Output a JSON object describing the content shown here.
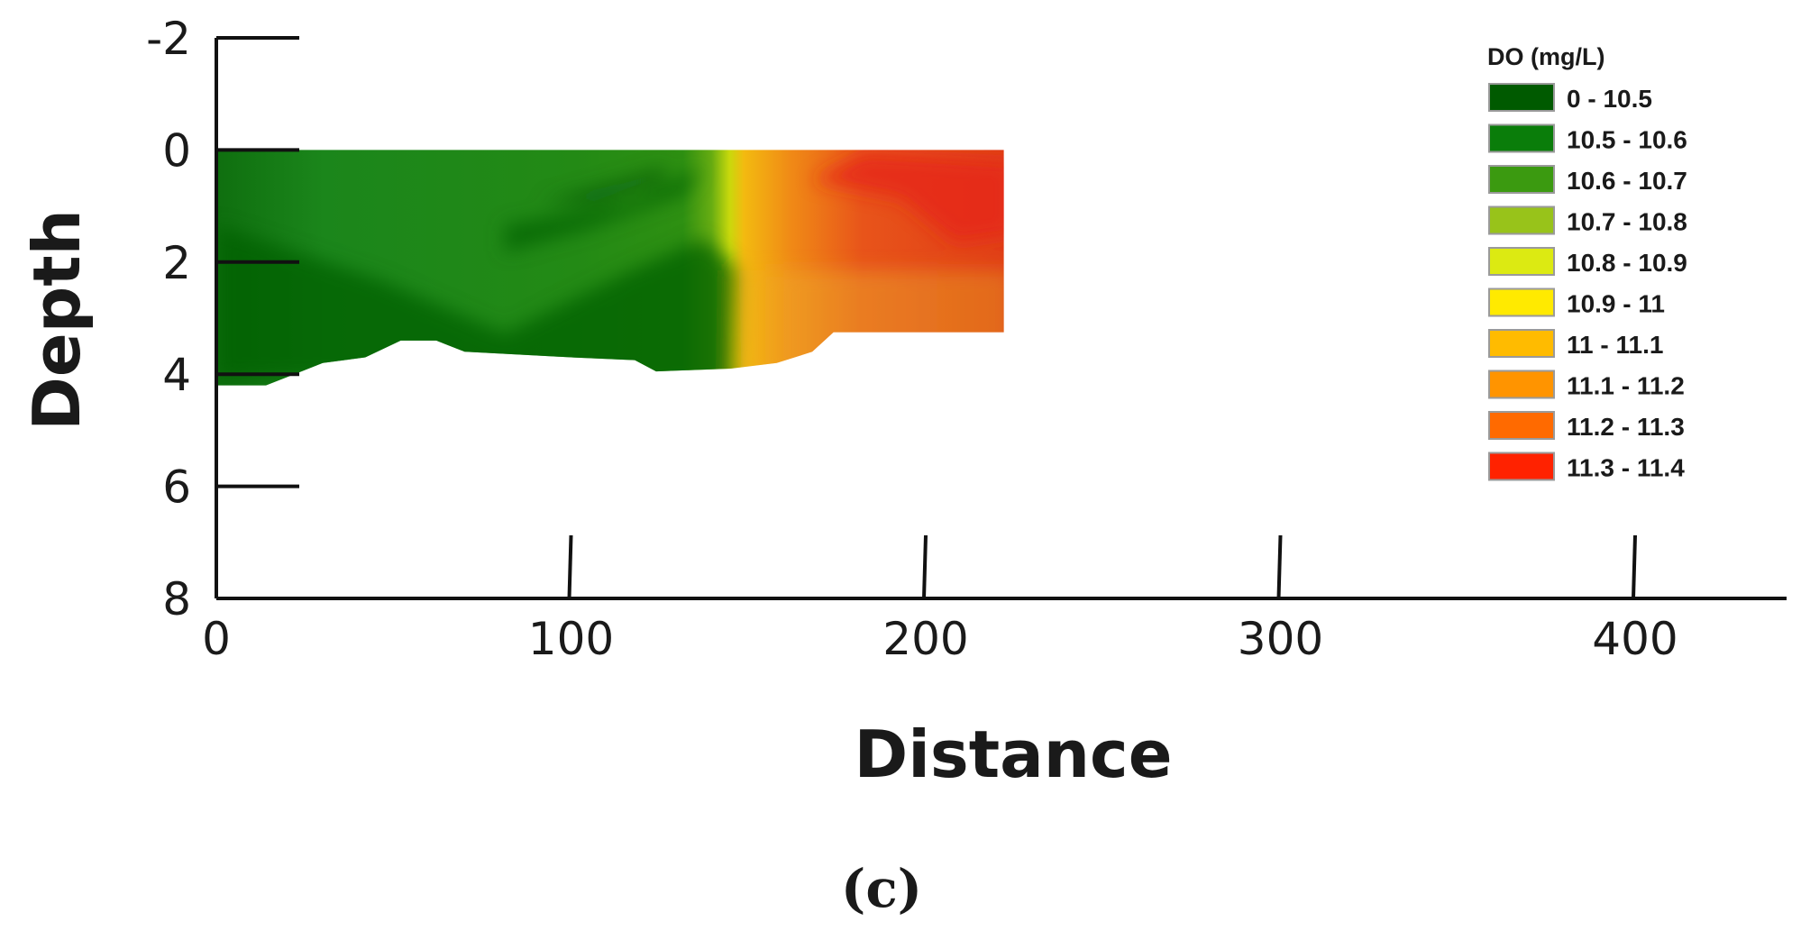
{
  "chart_data": {
    "type": "heatmap",
    "xlabel": "Distance",
    "ylabel": "Depth",
    "panel_label": "(c)",
    "x_ticks": [
      0,
      100,
      200,
      300,
      400
    ],
    "y_ticks": [
      -2,
      0,
      2,
      4,
      6,
      8
    ],
    "xlim": [
      0,
      440
    ],
    "ylim": [
      -2,
      8
    ],
    "legend": {
      "title": "DO (mg/L)",
      "placement": "top-right",
      "entries": [
        {
          "label": "0 - 10.5",
          "color": "#005a00"
        },
        {
          "label": "10.5 - 10.6",
          "color": "#0a7d0a"
        },
        {
          "label": "10.6 - 10.7",
          "color": "#3b9a10"
        },
        {
          "label": "10.7 - 10.8",
          "color": "#98c31a"
        },
        {
          "label": "10.8 - 10.9",
          "color": "#dcea12"
        },
        {
          "label": "10.9 - 11",
          "color": "#ffea00"
        },
        {
          "label": "11 - 11.1",
          "color": "#ffbb00"
        },
        {
          "label": "11.1 - 11.2",
          "color": "#ff9400"
        },
        {
          "label": "11.2 - 11.3",
          "color": "#ff6a00"
        },
        {
          "label": "11.3 - 11.4",
          "color": "#ff2200"
        }
      ]
    },
    "field": {
      "x_extent": [
        0,
        222
      ],
      "surface_depth": 0,
      "bottom_profile": [
        {
          "distance": 0,
          "depth": 4.2
        },
        {
          "distance": 14,
          "depth": 4.2
        },
        {
          "distance": 22,
          "depth": 4.0
        },
        {
          "distance": 30,
          "depth": 3.8
        },
        {
          "distance": 42,
          "depth": 3.7
        },
        {
          "distance": 52,
          "depth": 3.4
        },
        {
          "distance": 62,
          "depth": 3.4
        },
        {
          "distance": 70,
          "depth": 3.6
        },
        {
          "distance": 100,
          "depth": 3.7
        },
        {
          "distance": 118,
          "depth": 3.75
        },
        {
          "distance": 124,
          "depth": 3.95
        },
        {
          "distance": 145,
          "depth": 3.9
        },
        {
          "distance": 158,
          "depth": 3.8
        },
        {
          "distance": 168,
          "depth": 3.6
        },
        {
          "distance": 174,
          "depth": 3.25
        },
        {
          "distance": 222,
          "depth": 3.25
        }
      ],
      "horizontal_gradient": [
        {
          "distance": 0,
          "color": "#0f6f0f"
        },
        {
          "distance": 30,
          "color": "#1b861b"
        },
        {
          "distance": 100,
          "color": "#238a15"
        },
        {
          "distance": 130,
          "color": "#2e9012"
        },
        {
          "distance": 138,
          "color": "#67ad12"
        },
        {
          "distance": 143,
          "color": "#c9d90c"
        },
        {
          "distance": 147,
          "color": "#f3ba10"
        },
        {
          "distance": 160,
          "color": "#f08a16"
        },
        {
          "distance": 180,
          "color": "#e8541a"
        },
        {
          "distance": 222,
          "color": "#e03d17"
        }
      ]
    }
  }
}
